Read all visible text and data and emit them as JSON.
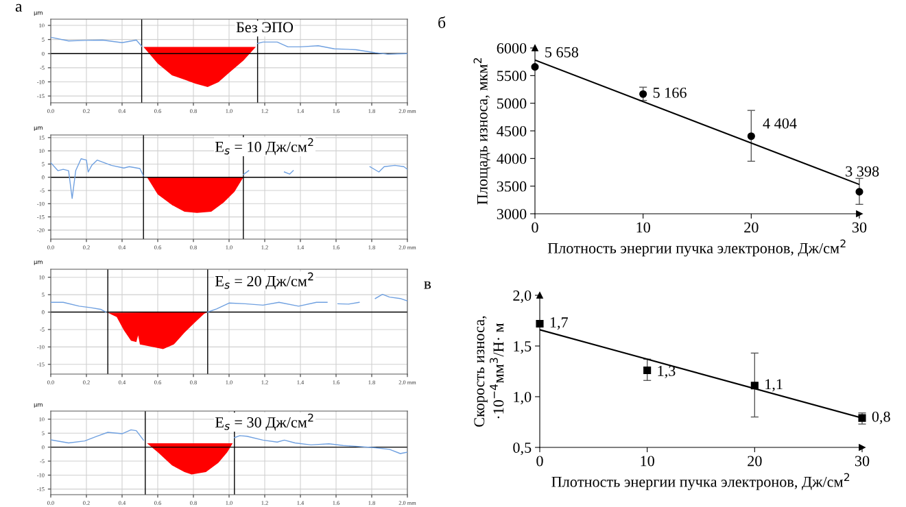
{
  "chart_data": [
    {
      "type": "line",
      "title": "Без ЭПО",
      "ylabel": "µm",
      "annotations": [
        "а"
      ],
      "grid": true,
      "xlim": [
        0,
        2.0
      ],
      "ylim": [
        -17.4,
        12.2
      ],
      "xticks": [
        {
          "value": 0,
          "label": "0.0"
        },
        0.2,
        0.4,
        0.6,
        0.8,
        {
          "value": 1,
          "label": "1.0"
        },
        1.2,
        1.4,
        1.6,
        1.8,
        {
          "value": 2.0,
          "label": "2.0 mm"
        }
      ],
      "yticks": [
        -15,
        -10,
        -5,
        0,
        5,
        10
      ],
      "ref_lines": [
        {
          "axis": "y",
          "value": 0,
          "color": "#000000"
        },
        {
          "axis": "x",
          "value": 0.51,
          "color": "#000000"
        },
        {
          "axis": "x",
          "value": 1.16,
          "color": "#000000"
        }
      ],
      "series": [
        {
          "type": "line",
          "color": "#6fa0e0",
          "x": [
            0,
            0.1,
            0.2,
            0.29,
            0.4,
            0.48,
            0.51,
            0.52,
            1.16,
            1.19,
            1.27,
            1.33,
            1.4,
            1.5,
            1.59,
            1.71,
            1.82,
            1.89,
            2.0
          ],
          "values": [
            5.8,
            4.5,
            4.7,
            4.8,
            3.9,
            4.8,
            2.6,
            null,
            3.6,
            4.1,
            4.1,
            2.4,
            2.4,
            2.8,
            1.7,
            1.4,
            0.3,
            -0.2,
            0
          ]
        },
        {
          "type": "area",
          "color": "#ff0000",
          "x": [
            0.52,
            0.6,
            0.68,
            0.75,
            0.81,
            0.88,
            0.94,
            1.0,
            1.08,
            1.15
          ],
          "values": [
            2.4,
            -3.5,
            -7.7,
            -9.2,
            -10.6,
            -11.8,
            -10.1,
            -6.8,
            -2.5,
            2.4
          ]
        }
      ]
    },
    {
      "type": "line",
      "title": "E$_{s}$ = 10 Дж/см$^{2}$",
      "ylabel": "µm",
      "grid": true,
      "xlim": [
        0,
        2.0
      ],
      "ylim": [
        -23.4,
        16
      ],
      "xticks": [
        {
          "value": 0,
          "label": "0.0"
        },
        0.2,
        0.4,
        0.6,
        0.8,
        {
          "value": 1,
          "label": "1.0"
        },
        1.2,
        1.4,
        1.6,
        1.8,
        {
          "value": 2.0,
          "label": "2.0 mm"
        }
      ],
      "yticks": [
        -20,
        -15,
        -10,
        -5,
        0,
        5,
        10,
        15
      ],
      "ref_lines": [
        {
          "axis": "y",
          "value": 0,
          "color": "#000000"
        },
        {
          "axis": "x",
          "value": 0.52,
          "color": "#000000"
        },
        {
          "axis": "x",
          "value": 1.08,
          "color": "#000000"
        }
      ],
      "series": [
        {
          "type": "line",
          "color": "#6fa0e0",
          "x": [
            0,
            0.04,
            0.07,
            0.1,
            0.12,
            0.14,
            0.17,
            0.2,
            0.21,
            0.23,
            0.26,
            0.34,
            0.41,
            0.44,
            0.5,
            0.52,
            0.53,
            1.08,
            1.11,
            1.2,
            1.31,
            1.34,
            1.36,
            1.5,
            1.79,
            1.84,
            1.87,
            1.93,
            1.98,
            2.0
          ],
          "values": [
            5.5,
            2.5,
            3,
            2.5,
            -8,
            2.5,
            7,
            6.5,
            2,
            4.5,
            6.5,
            4.5,
            3.5,
            4,
            3.3,
            0.5,
            null,
            1,
            2.5,
            null,
            2,
            1.2,
            2.5,
            null,
            4,
            2,
            4,
            4.5,
            4,
            3
          ]
        },
        {
          "type": "area",
          "color": "#ff0000",
          "x": [
            0.54,
            0.6,
            0.68,
            0.75,
            0.82,
            0.9,
            0.97,
            1.03,
            1.08
          ],
          "values": [
            0,
            -6.5,
            -10.5,
            -13,
            -13.5,
            -13,
            -9.5,
            -5.5,
            0
          ]
        }
      ]
    },
    {
      "type": "line",
      "title": "E$_{s}$ = 20 Дж/см$^{2}$",
      "ylabel": "µm",
      "grid": true,
      "xlim": [
        0,
        2.0
      ],
      "ylim": [
        -17.8,
        12.3
      ],
      "xticks": [
        {
          "value": 0,
          "label": "0.0"
        },
        0.2,
        0.4,
        0.6,
        0.8,
        {
          "value": 1,
          "label": "1.0"
        },
        1.2,
        1.4,
        1.6,
        1.8,
        {
          "value": 2.0,
          "label": "2.0 mm"
        }
      ],
      "yticks": [
        -15,
        -10,
        -5,
        0,
        5,
        10
      ],
      "ref_lines": [
        {
          "axis": "y",
          "value": 0,
          "color": "#000000"
        },
        {
          "axis": "x",
          "value": 0.32,
          "color": "#000000"
        },
        {
          "axis": "x",
          "value": 0.88,
          "color": "#000000"
        }
      ],
      "series": [
        {
          "type": "line",
          "color": "#6fa0e0",
          "x": [
            0,
            0.07,
            0.16,
            0.22,
            0.28,
            0.31,
            0.6,
            0.88,
            0.93,
            1.0,
            1.09,
            1.19,
            1.28,
            1.39,
            1.49,
            1.55,
            1.58,
            1.61,
            1.67,
            1.73,
            1.78,
            1.82,
            1.86,
            1.9,
            1.96,
            2.0
          ],
          "values": [
            2.8,
            2.8,
            1.7,
            1.3,
            0.8,
            0,
            null,
            0,
            0.9,
            2.6,
            2.4,
            2,
            2.8,
            1.7,
            2.8,
            2.8,
            null,
            2.4,
            2.3,
            2.8,
            null,
            3.9,
            5.1,
            4.3,
            3.9,
            3.2
          ]
        },
        {
          "type": "area",
          "color": "#ff0000",
          "x": [
            0.32,
            0.37,
            0.41,
            0.45,
            0.48,
            0.49,
            0.5,
            0.54,
            0.63,
            0.69,
            0.75,
            0.81,
            0.86,
            0.88
          ],
          "values": [
            -0.2,
            -1.4,
            -5.2,
            -8.2,
            -8.6,
            -6.7,
            -9.3,
            -9.7,
            -10.6,
            -9.3,
            -5.9,
            -2.9,
            -0.5,
            0
          ]
        }
      ]
    },
    {
      "type": "line",
      "title": "E$_{s}$ = 30 Дж/см$^{2}$",
      "ylabel": "µm",
      "grid": true,
      "xlim": [
        0,
        2.0
      ],
      "ylim": [
        -17,
        12.9
      ],
      "xticks": [
        {
          "value": 0,
          "label": "0.0"
        },
        0.2,
        0.4,
        0.6,
        0.8,
        {
          "value": 1,
          "label": "1.0"
        },
        1.2,
        1.4,
        1.6,
        1.8,
        {
          "value": 2.0,
          "label": "2.0 mm"
        }
      ],
      "yticks": [
        -15,
        -10,
        -5,
        0,
        5,
        10
      ],
      "ref_lines": [
        {
          "axis": "y",
          "value": 0,
          "color": "#000000"
        },
        {
          "axis": "x",
          "value": 0.53,
          "color": "#000000"
        },
        {
          "axis": "x",
          "value": 1.03,
          "color": "#000000"
        }
      ],
      "series": [
        {
          "type": "line",
          "color": "#6fa0e0",
          "x": [
            0,
            0.1,
            0.19,
            0.26,
            0.32,
            0.4,
            0.45,
            0.48,
            0.52,
            0.8,
            1.03,
            1.06,
            1.1,
            1.19,
            1.27,
            1.31,
            1.37,
            1.46,
            1.56,
            1.64,
            1.71,
            1.82,
            1.9,
            1.96,
            2.0
          ],
          "values": [
            2.6,
            1.5,
            2.2,
            3.9,
            5.3,
            4.8,
            6.2,
            5.9,
            2.5,
            null,
            3.4,
            4.1,
            3.9,
            2.5,
            1.8,
            2.5,
            1.5,
            0.8,
            1.2,
            0.6,
            0.3,
            -0.2,
            -0.8,
            -2.3,
            -1.8
          ]
        },
        {
          "type": "area",
          "color": "#ff0000",
          "x": [
            0.54,
            0.6,
            0.68,
            0.75,
            0.79,
            0.87,
            0.94,
            0.99,
            1.02
          ],
          "values": [
            1.4,
            -1.8,
            -6.5,
            -8.9,
            -9.8,
            -8.9,
            -5.6,
            -1.8,
            1.4
          ]
        }
      ]
    },
    {
      "type": "scatter",
      "ylabel": "Площадь износа, мкм$^{2}$",
      "xlabel": "Плотность энергии пучка электронов, Дж/см$^{2}$",
      "annotations": [
        "б"
      ],
      "xlim": [
        0,
        30
      ],
      "ylim": [
        3000,
        6000
      ],
      "xticks": [
        0,
        10,
        20,
        30
      ],
      "yticks": [
        3000,
        3500,
        4000,
        4500,
        5000,
        5500,
        6000
      ],
      "series": [
        {
          "type": "scatter",
          "color": "#000000",
          "marker": "circle",
          "x": [
            0,
            10,
            20,
            30
          ],
          "values": [
            5658,
            5166,
            4404,
            3398
          ],
          "errors": [
            null,
            [
              5050,
              5290
            ],
            [
              3950,
              4870
            ],
            [
              3170,
              3640
            ]
          ],
          "value_labels": [
            "5 658",
            "5 166",
            "4 404",
            "3 398"
          ]
        },
        {
          "type": "line",
          "color": "#000000",
          "x": [
            0,
            30
          ],
          "values": [
            5780,
            3530
          ]
        }
      ]
    },
    {
      "type": "scatter",
      "ylabel": "Скорость износа,\n·10$^{−4}$мм$^{3}$/Н· м",
      "xlabel": "Плотность энергии пучка электронов, Дж/см$^{2}$",
      "annotations": [
        "в"
      ],
      "xlim": [
        0,
        30
      ],
      "ylim": [
        0.5,
        2.0
      ],
      "xticks": [
        0,
        10,
        20,
        30
      ],
      "yticks": [
        {
          "value": 0.5,
          "label": "0,5"
        },
        {
          "value": 1.0,
          "label": "1,0"
        },
        {
          "value": 1.5,
          "label": "1,5"
        },
        {
          "value": 2.0,
          "label": "2,0"
        }
      ],
      "series": [
        {
          "type": "scatter",
          "color": "#000000",
          "marker": "square",
          "x": [
            0,
            10,
            20,
            30
          ],
          "values": [
            1.72,
            1.26,
            1.11,
            0.79
          ],
          "errors": [
            null,
            [
              1.16,
              1.37
            ],
            [
              0.8,
              1.43
            ],
            [
              0.73,
              0.84
            ]
          ],
          "value_labels": [
            "1,7",
            "1,3",
            "1,1",
            "0,8"
          ]
        },
        {
          "type": "line",
          "color": "#000000",
          "x": [
            0,
            30
          ],
          "values": [
            1.66,
            0.79
          ]
        }
      ]
    }
  ]
}
